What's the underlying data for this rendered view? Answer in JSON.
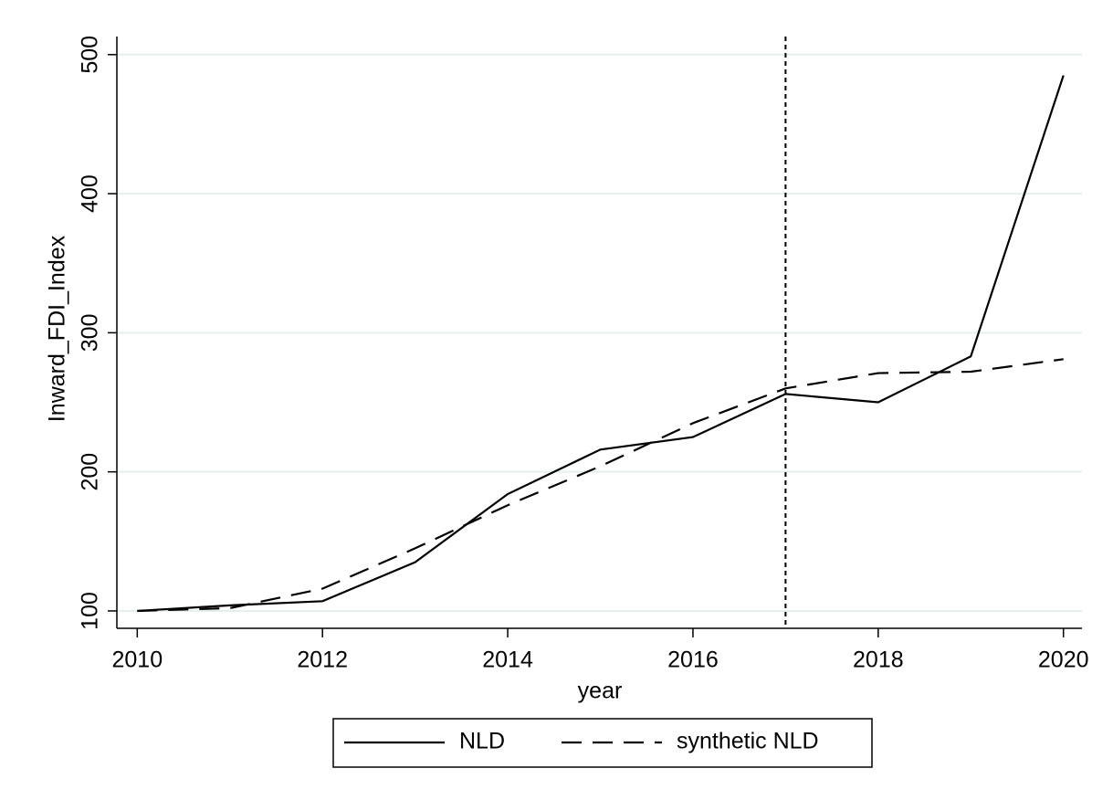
{
  "chart_data": {
    "type": "line",
    "x_label": "year",
    "y_label": "Inward_FDI_Index",
    "x": [
      2010,
      2011,
      2012,
      2013,
      2014,
      2015,
      2016,
      2017,
      2018,
      2019,
      2020
    ],
    "series": [
      {
        "name": "NLD",
        "color": "#000000",
        "dash": "solid",
        "values": [
          100,
          104,
          107,
          135,
          184,
          216,
          225,
          256,
          250,
          283,
          485
        ]
      },
      {
        "name": "synthetic NLD",
        "color": "#000000",
        "dash": "dashed",
        "values": [
          100,
          102,
          116,
          145,
          176,
          204,
          235,
          260,
          271,
          272,
          281
        ]
      }
    ],
    "vline": 2017,
    "xlim": [
      2009.78,
      2020.2
    ],
    "xticks": [
      2010,
      2012,
      2014,
      2016,
      2018,
      2020
    ],
    "ylim": [
      87.5,
      513
    ],
    "yticks": [
      100,
      200,
      300,
      400,
      500
    ],
    "grid": true,
    "legend": "bottom"
  }
}
